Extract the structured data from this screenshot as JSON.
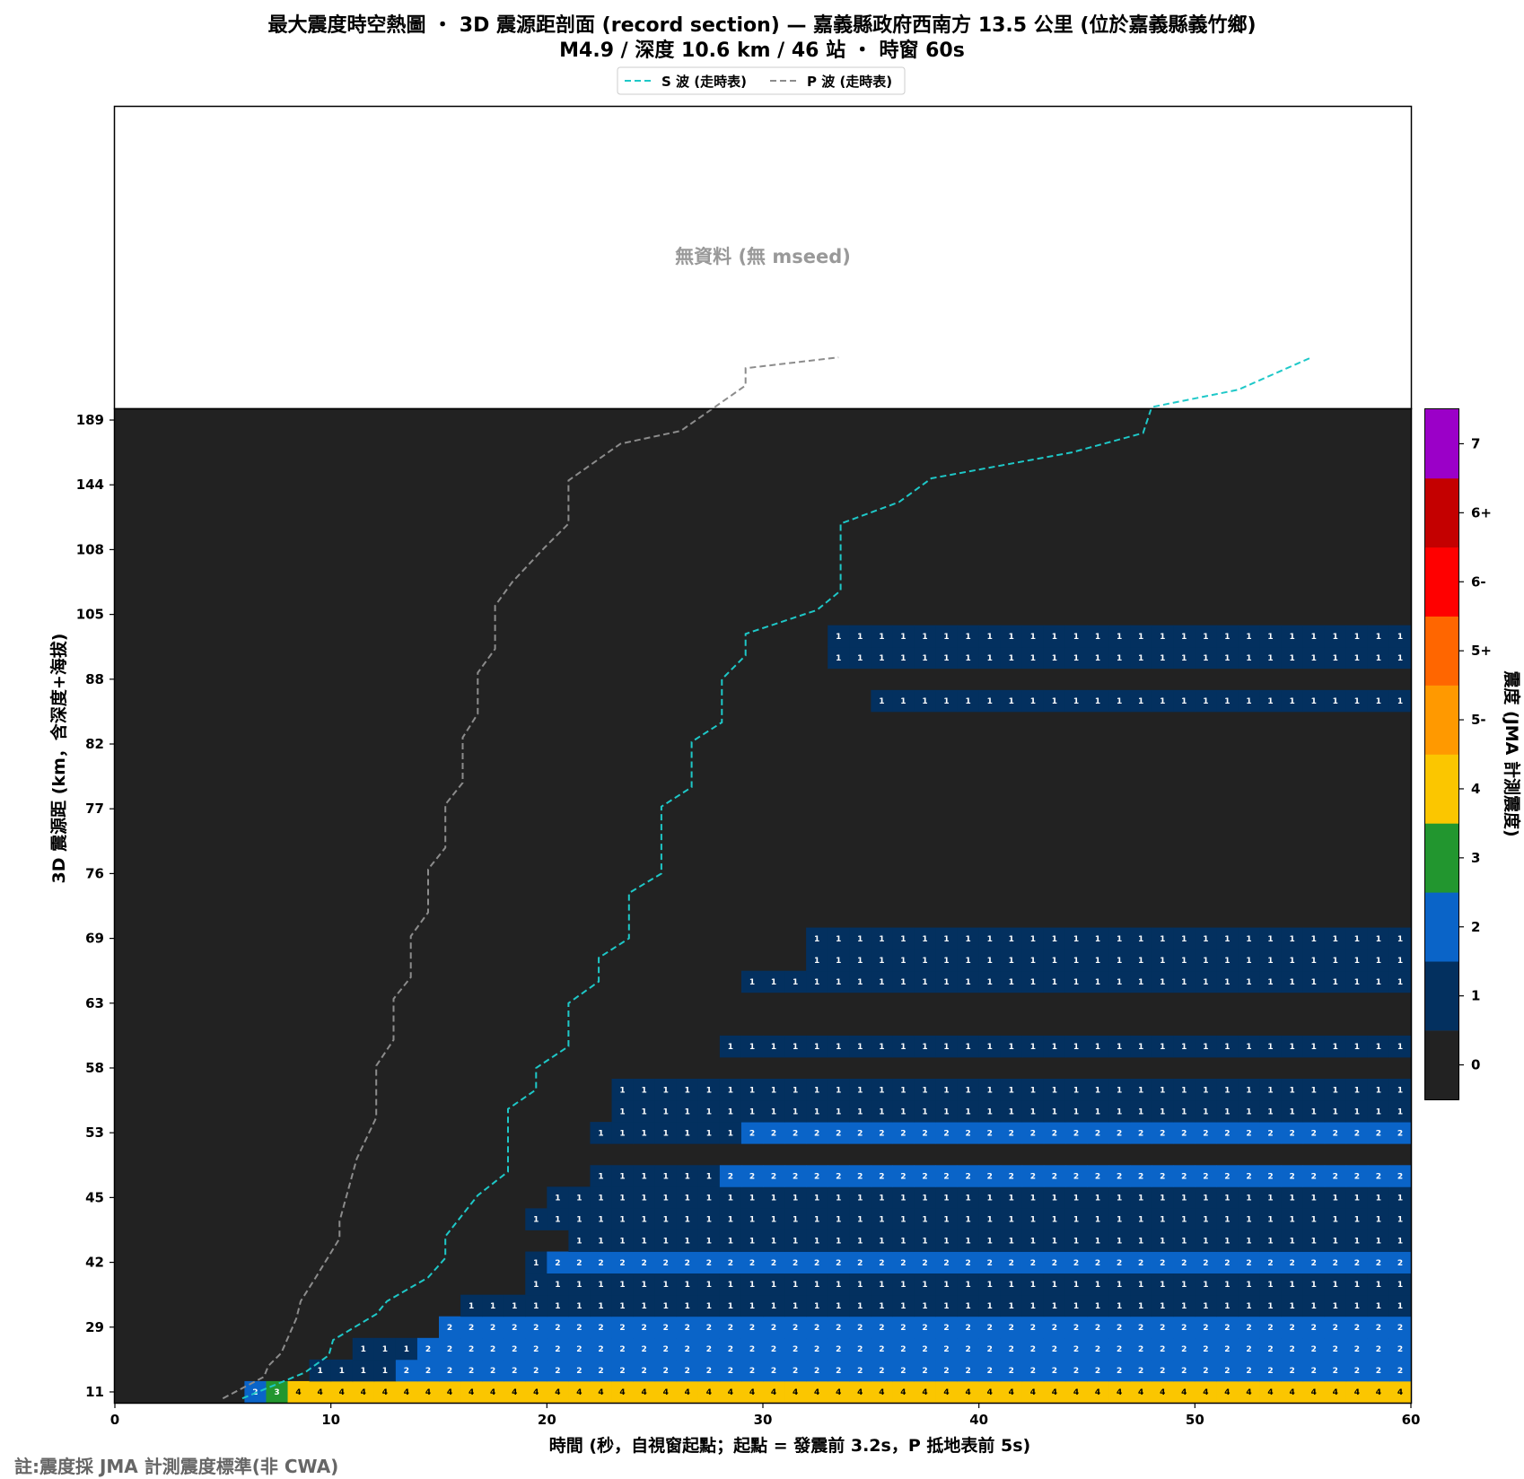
{
  "chart_data": {
    "type": "heatmap",
    "title_line1": "最大震度時空熱圖 ・ 3D 震源距剖面 (record section) — 嘉義縣政府西南方 13.5 公里 (位於嘉義縣義竹鄉)",
    "title_line2": "M4.9 / 深度 10.6 km / 46 站 ・ 時窗 60s",
    "xlabel": "時間 (秒，自視窗起點；起點 = 發震前 3.2s，P 抵地表前 5s)",
    "ylabel": "3D 震源距 (km，含深度+海拔)",
    "colorbar_label": "震度 (JMA 計測震度)",
    "no_data_text": "無資料 (無 mseed)",
    "note": "註:震度採 JMA 計測震度標準(非 CWA)",
    "xlim": [
      0,
      60
    ],
    "x_ticks": [
      0,
      10,
      20,
      30,
      40,
      50,
      60
    ],
    "y_ticks": [
      "11",
      "29",
      "42",
      "45",
      "53",
      "58",
      "63",
      "69",
      "76",
      "77",
      "82",
      "88",
      "105",
      "108",
      "144",
      "189"
    ],
    "colorbar_ticks": [
      "0",
      "1",
      "2",
      "3",
      "4",
      "5-",
      "5+",
      "6-",
      "6+",
      "7"
    ],
    "colorbar_colors": [
      "#222222",
      "#03305f",
      "#0a64c8",
      "#22962f",
      "#fbc600",
      "#ff9900",
      "#ff6600",
      "#ff0000",
      "#c40000",
      "#9b00c8"
    ],
    "legend": [
      {
        "name": "S 波 (走時表)",
        "color": "#1ec8c8"
      },
      {
        "name": "P 波 (走時表)",
        "color": "#8c8c8c"
      }
    ],
    "time_bins": 60,
    "rows": [
      {
        "start": 6,
        "segments": [
          [
            6,
            2
          ],
          [
            7,
            3
          ],
          [
            8,
            4
          ]
        ]
      },
      {
        "start": 9,
        "segments": [
          [
            9,
            1
          ],
          [
            13,
            2
          ]
        ]
      },
      {
        "start": 11,
        "segments": [
          [
            11,
            1
          ],
          [
            14,
            2
          ]
        ]
      },
      {
        "start": 15,
        "segments": [
          [
            15,
            2
          ]
        ]
      },
      {
        "start": 16,
        "segments": [
          [
            16,
            1
          ]
        ]
      },
      {
        "start": 19,
        "segments": [
          [
            19,
            1
          ]
        ]
      },
      {
        "start": 19,
        "segments": [
          [
            19,
            1
          ],
          [
            20,
            2
          ]
        ]
      },
      {
        "start": 21,
        "segments": [
          [
            21,
            1
          ]
        ]
      },
      {
        "start": 19,
        "segments": [
          [
            19,
            1
          ]
        ]
      },
      {
        "start": 20,
        "segments": [
          [
            20,
            1
          ]
        ]
      },
      {
        "start": 22,
        "segments": [
          [
            22,
            1
          ],
          [
            28,
            2
          ]
        ]
      },
      {
        "start": null,
        "segments": []
      },
      {
        "start": 22,
        "segments": [
          [
            22,
            1
          ],
          [
            29,
            2
          ]
        ]
      },
      {
        "start": 23,
        "segments": [
          [
            23,
            1
          ]
        ]
      },
      {
        "start": 23,
        "segments": [
          [
            23,
            1
          ]
        ]
      },
      {
        "start": null,
        "segments": []
      },
      {
        "start": 28,
        "segments": [
          [
            28,
            1
          ]
        ]
      },
      {
        "start": null,
        "segments": []
      },
      {
        "start": null,
        "segments": []
      },
      {
        "start": 29,
        "segments": [
          [
            29,
            1
          ]
        ]
      },
      {
        "start": 32,
        "segments": [
          [
            32,
            1
          ]
        ]
      },
      {
        "start": 32,
        "segments": [
          [
            32,
            1
          ]
        ]
      },
      {
        "start": null,
        "segments": []
      },
      {
        "start": null,
        "segments": []
      },
      {
        "start": null,
        "segments": []
      },
      {
        "start": null,
        "segments": []
      },
      {
        "start": null,
        "segments": []
      },
      {
        "start": null,
        "segments": []
      },
      {
        "start": null,
        "segments": []
      },
      {
        "start": null,
        "segments": []
      },
      {
        "start": null,
        "segments": []
      },
      {
        "start": null,
        "segments": []
      },
      {
        "start": 35,
        "segments": [
          [
            35,
            1
          ]
        ]
      },
      {
        "start": null,
        "segments": []
      },
      {
        "start": 33,
        "segments": [
          [
            33,
            1
          ]
        ]
      },
      {
        "start": 33,
        "segments": [
          [
            33,
            1
          ]
        ]
      },
      {
        "start": null,
        "segments": []
      },
      {
        "start": null,
        "segments": []
      },
      {
        "start": null,
        "segments": []
      },
      {
        "start": null,
        "segments": []
      },
      {
        "start": null,
        "segments": []
      },
      {
        "start": null,
        "segments": []
      },
      {
        "start": null,
        "segments": []
      },
      {
        "start": null,
        "segments": []
      },
      {
        "start": null,
        "segments": []
      },
      {
        "start": null,
        "segments": []
      }
    ],
    "p_wave_curve": [
      [
        5.0,
        -0.3
      ],
      [
        6.9,
        0.7
      ],
      [
        7.1,
        1.2
      ],
      [
        7.7,
        1.8
      ],
      [
        8.4,
        3.4
      ],
      [
        8.6,
        4.2
      ],
      [
        9.3,
        5.3
      ],
      [
        10.4,
        7.1
      ],
      [
        10.4,
        7.9
      ],
      [
        11.2,
        10.8
      ],
      [
        12.1,
        12.7
      ],
      [
        12.1,
        15.1
      ],
      [
        12.9,
        16.3
      ],
      [
        12.9,
        18.2
      ],
      [
        13.7,
        19.2
      ],
      [
        13.7,
        21.1
      ],
      [
        14.5,
        22.2
      ],
      [
        14.5,
        24.2
      ],
      [
        15.3,
        25.2
      ],
      [
        15.3,
        27.2
      ],
      [
        16.1,
        28.2
      ],
      [
        16.1,
        30.3
      ],
      [
        16.8,
        31.4
      ],
      [
        16.8,
        33.3
      ],
      [
        17.6,
        34.4
      ],
      [
        17.6,
        36.4
      ],
      [
        18.4,
        37.5
      ],
      [
        19.9,
        39.1
      ],
      [
        21.0,
        40.2
      ],
      [
        21.0,
        42.2
      ],
      [
        23.4,
        43.9
      ],
      [
        26.2,
        44.5
      ],
      [
        29.2,
        46.6
      ],
      [
        29.2,
        47.4
      ],
      [
        33.5,
        47.9
      ]
    ],
    "s_wave_curve": [
      [
        5.9,
        -0.3
      ],
      [
        8.8,
        0.9
      ],
      [
        9.9,
        1.7
      ],
      [
        10.1,
        2.4
      ],
      [
        12.1,
        3.6
      ],
      [
        12.6,
        4.2
      ],
      [
        14.5,
        5.3
      ],
      [
        15.3,
        6.2
      ],
      [
        15.3,
        7.2
      ],
      [
        16.8,
        9.1
      ],
      [
        18.2,
        10.2
      ],
      [
        18.2,
        13.1
      ],
      [
        19.5,
        14.0
      ],
      [
        19.5,
        15.0
      ],
      [
        21.0,
        16.0
      ],
      [
        21.0,
        18.0
      ],
      [
        22.4,
        19.0
      ],
      [
        22.4,
        20.1
      ],
      [
        23.8,
        21.0
      ],
      [
        23.8,
        23.1
      ],
      [
        25.3,
        24.0
      ],
      [
        25.3,
        27.1
      ],
      [
        26.7,
        28.0
      ],
      [
        26.7,
        30.1
      ],
      [
        28.1,
        31.0
      ],
      [
        28.1,
        33.0
      ],
      [
        29.2,
        34.1
      ],
      [
        29.2,
        35.1
      ],
      [
        32.5,
        36.2
      ],
      [
        33.6,
        37.1
      ],
      [
        33.6,
        40.2
      ],
      [
        36.3,
        41.2
      ],
      [
        37.8,
        42.3
      ],
      [
        44.3,
        43.5
      ],
      [
        47.6,
        44.4
      ],
      [
        48.0,
        45.6
      ],
      [
        52.0,
        46.4
      ],
      [
        55.4,
        47.9
      ]
    ]
  }
}
